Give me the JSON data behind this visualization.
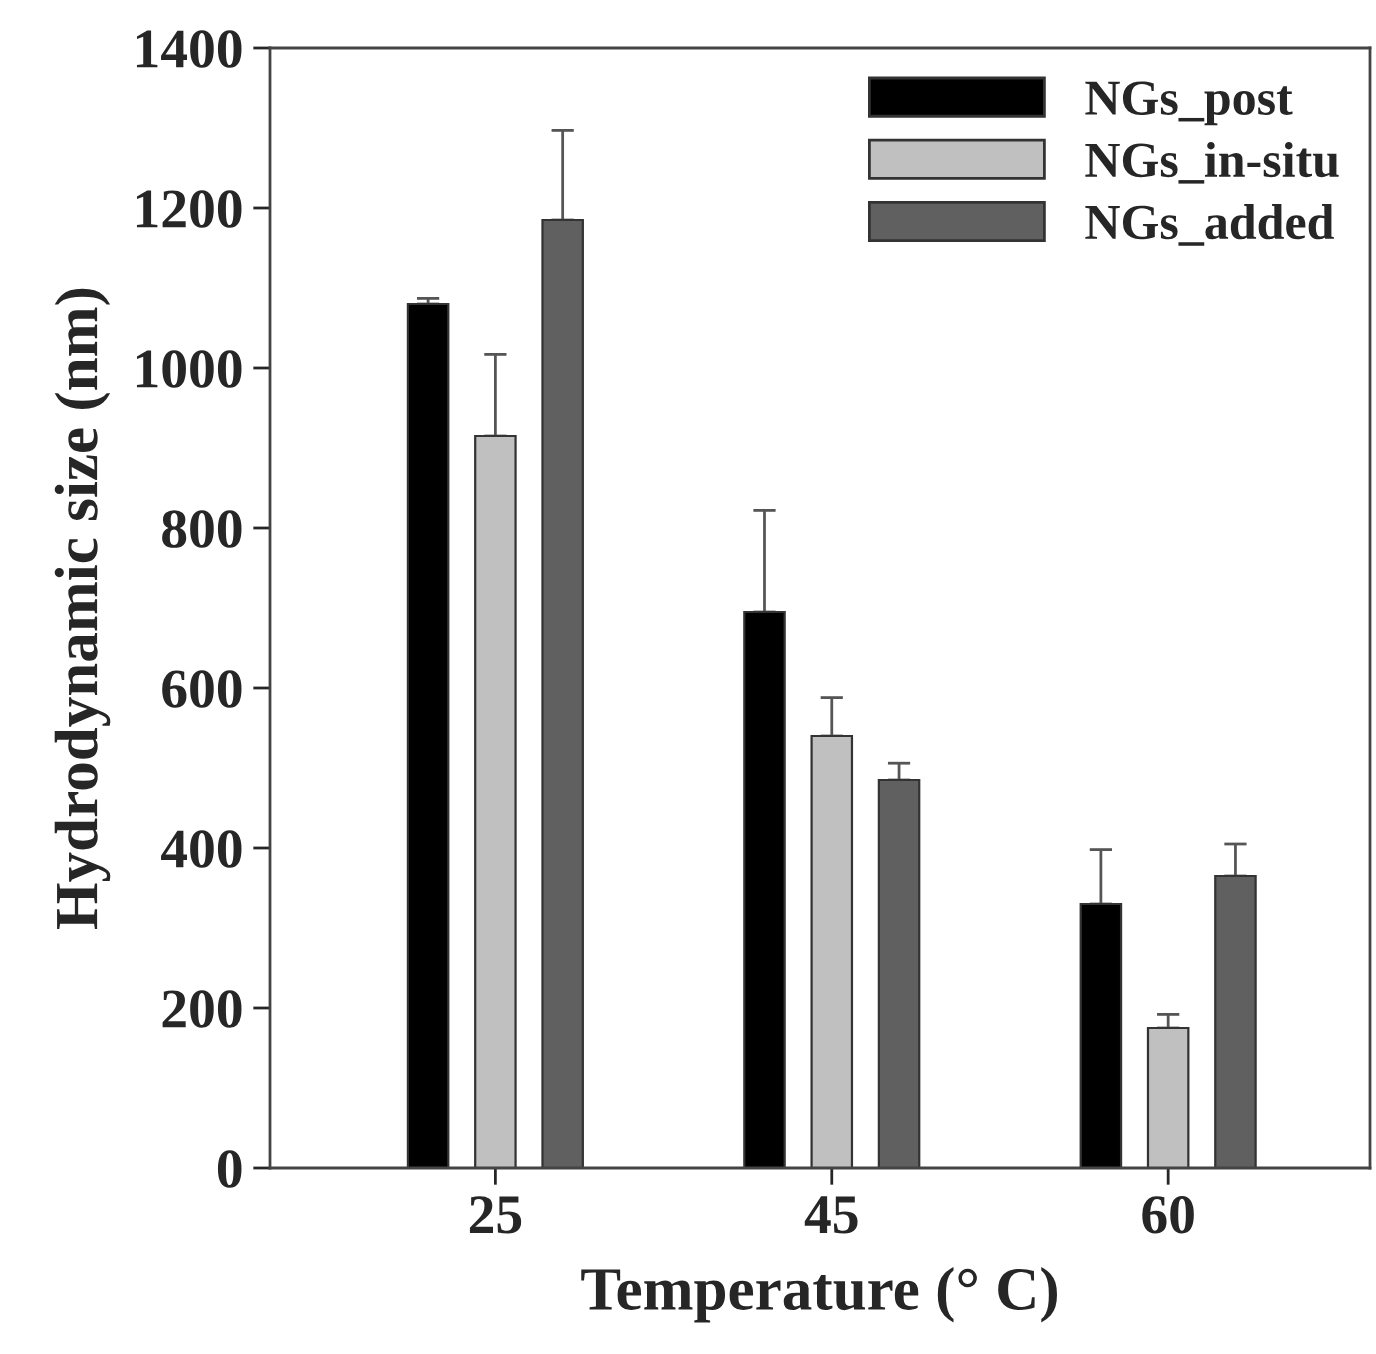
{
  "chart_data": {
    "type": "bar",
    "xlabel": "Temperature (° C)",
    "ylabel": "Hydrodynamic size (nm)",
    "categories": [
      "25",
      "45",
      "60"
    ],
    "series": [
      {
        "name": "NGs_post",
        "color": "#000000",
        "values": [
          1080,
          695,
          330
        ],
        "errors": [
          [
            1080,
            1087
          ],
          [
            695,
            822
          ],
          [
            330,
            398
          ]
        ]
      },
      {
        "name": "NGs_in-situ",
        "color": "#c0c0c0",
        "values": [
          915,
          540,
          175
        ],
        "errors": [
          [
            915,
            1017
          ],
          [
            540,
            588
          ],
          [
            175,
            192
          ]
        ]
      },
      {
        "name": "NGs_added",
        "color": "#606060",
        "values": [
          1185,
          485,
          365
        ],
        "errors": [
          [
            1185,
            1297
          ],
          [
            485,
            506
          ],
          [
            365,
            405
          ]
        ]
      }
    ],
    "ylim": [
      0,
      1400
    ],
    "yticks": [
      0,
      200,
      400,
      600,
      800,
      1000,
      1200,
      1400
    ],
    "grid": false,
    "legend": "top right"
  }
}
